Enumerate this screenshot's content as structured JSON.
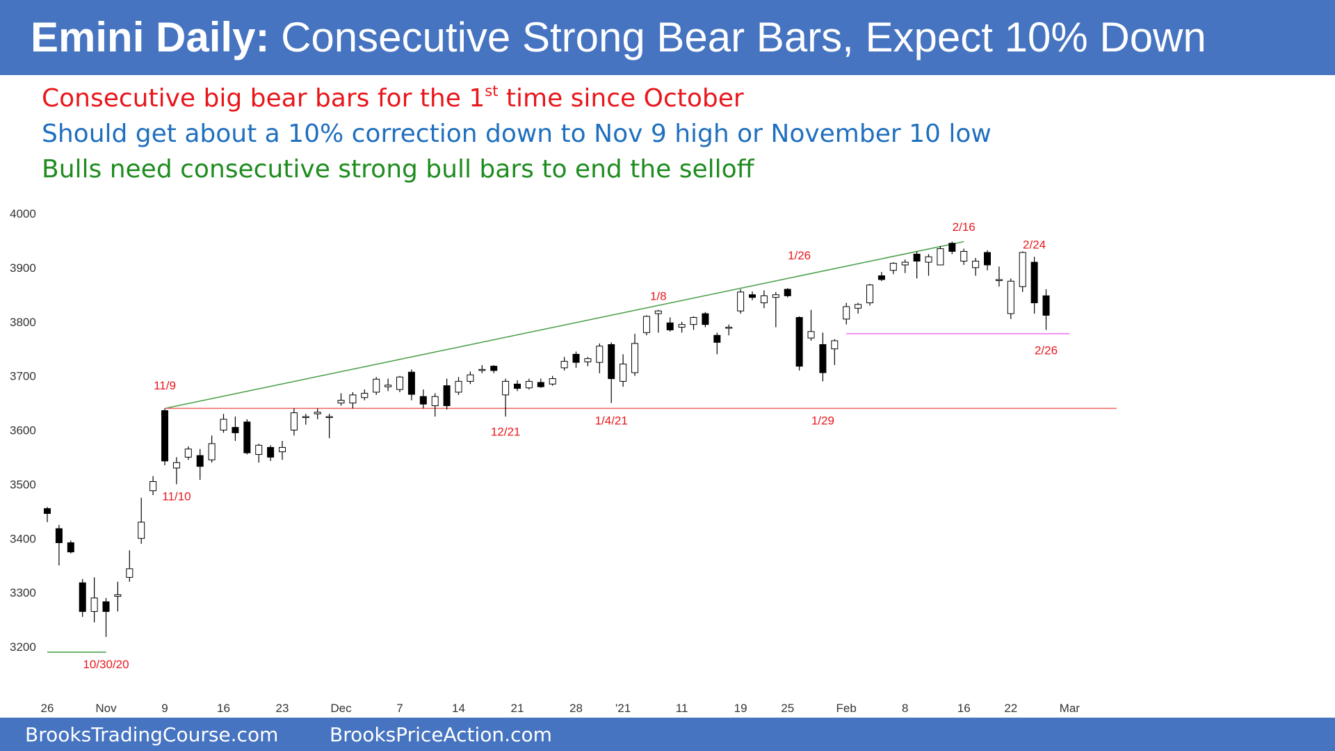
{
  "header": {
    "title_bold": "Emini Daily:",
    "title_rest": " Consecutive Strong Bear Bars, Expect 10% Down",
    "color": "#4674c1"
  },
  "notes": [
    {
      "pre": "Consecutive big bear bars for the 1",
      "sup": "st",
      "post": " time since October",
      "color": "#e8161b"
    },
    {
      "pre": "Should get about a 10% correction down to Nov 9 high or November 10 low",
      "sup": "",
      "post": "",
      "color": "#1f6fbf"
    },
    {
      "pre": "Bulls need consecutive strong bull bars to end the selloff",
      "sup": "",
      "post": "",
      "color": "#1e8c1e"
    }
  ],
  "footer": {
    "left_link": "BrooksTradingCourse.com",
    "right_link": "BrooksPriceAction.com"
  },
  "chart_data": {
    "type": "candlestick",
    "ylim": [
      3150,
      4020
    ],
    "y_ticks": [
      3200,
      3300,
      3400,
      3500,
      3600,
      3700,
      3800,
      3900,
      4000
    ],
    "x_ticks": [
      {
        "bar": 0,
        "label": "26"
      },
      {
        "bar": 5,
        "label": "Nov"
      },
      {
        "bar": 10,
        "label": "9"
      },
      {
        "bar": 15,
        "label": "16"
      },
      {
        "bar": 20,
        "label": "23"
      },
      {
        "bar": 25,
        "label": "Dec"
      },
      {
        "bar": 30,
        "label": "7"
      },
      {
        "bar": 35,
        "label": "14"
      },
      {
        "bar": 40,
        "label": "21"
      },
      {
        "bar": 45,
        "label": "28"
      },
      {
        "bar": 49,
        "label": "'21"
      },
      {
        "bar": 54,
        "label": "11"
      },
      {
        "bar": 59,
        "label": "19"
      },
      {
        "bar": 63,
        "label": "25"
      },
      {
        "bar": 68,
        "label": "Feb"
      },
      {
        "bar": 73,
        "label": "8"
      },
      {
        "bar": 78,
        "label": "16"
      },
      {
        "bar": 82,
        "label": "22"
      },
      {
        "bar": 87,
        "label": "Mar"
      }
    ],
    "bars": [
      {
        "date": "10/26",
        "o": 3455,
        "h": 3458,
        "l": 3430,
        "c": 3446
      },
      {
        "date": "10/27",
        "o": 3418,
        "h": 3425,
        "l": 3350,
        "c": 3392
      },
      {
        "date": "10/28",
        "o": 3392,
        "h": 3396,
        "l": 3372,
        "c": 3375
      },
      {
        "date": "10/29",
        "o": 3318,
        "h": 3325,
        "l": 3255,
        "c": 3265
      },
      {
        "date": "10/30",
        "o": 3265,
        "h": 3328,
        "l": 3245,
        "c": 3290
      },
      {
        "date": "11/2",
        "o": 3283,
        "h": 3290,
        "l": 3218,
        "c": 3265
      },
      {
        "date": "11/3",
        "o": 3293,
        "h": 3320,
        "l": 3265,
        "c": 3296
      },
      {
        "date": "11/4",
        "o": 3328,
        "h": 3378,
        "l": 3320,
        "c": 3344
      },
      {
        "date": "11/5",
        "o": 3400,
        "h": 3475,
        "l": 3390,
        "c": 3430
      },
      {
        "date": "11/6",
        "o": 3488,
        "h": 3515,
        "l": 3480,
        "c": 3505
      },
      {
        "date": "11/9",
        "o": 3636,
        "h": 3640,
        "l": 3535,
        "c": 3543
      },
      {
        "date": "11/10",
        "o": 3530,
        "h": 3550,
        "l": 3500,
        "c": 3540
      },
      {
        "date": "11/11",
        "o": 3550,
        "h": 3570,
        "l": 3545,
        "c": 3565
      },
      {
        "date": "11/12",
        "o": 3553,
        "h": 3565,
        "l": 3508,
        "c": 3533
      },
      {
        "date": "11/13",
        "o": 3545,
        "h": 3590,
        "l": 3540,
        "c": 3575
      },
      {
        "date": "11/16",
        "o": 3600,
        "h": 3630,
        "l": 3595,
        "c": 3620
      },
      {
        "date": "11/17",
        "o": 3605,
        "h": 3625,
        "l": 3580,
        "c": 3595
      },
      {
        "date": "11/18",
        "o": 3615,
        "h": 3620,
        "l": 3555,
        "c": 3558
      },
      {
        "date": "11/19",
        "o": 3555,
        "h": 3575,
        "l": 3540,
        "c": 3572
      },
      {
        "date": "11/20",
        "o": 3568,
        "h": 3572,
        "l": 3543,
        "c": 3550
      },
      {
        "date": "11/23",
        "o": 3560,
        "h": 3580,
        "l": 3545,
        "c": 3568
      },
      {
        "date": "11/24",
        "o": 3600,
        "h": 3640,
        "l": 3590,
        "c": 3632
      },
      {
        "date": "11/25",
        "o": 3625,
        "h": 3630,
        "l": 3610,
        "c": 3625
      },
      {
        "date": "11/27",
        "o": 3630,
        "h": 3640,
        "l": 3620,
        "c": 3633
      },
      {
        "date": "11/30",
        "o": 3625,
        "h": 3630,
        "l": 3585,
        "c": 3625
      },
      {
        "date": "12/1",
        "o": 3650,
        "h": 3668,
        "l": 3645,
        "c": 3655
      },
      {
        "date": "12/2",
        "o": 3650,
        "h": 3670,
        "l": 3640,
        "c": 3665
      },
      {
        "date": "12/3",
        "o": 3660,
        "h": 3675,
        "l": 3655,
        "c": 3668
      },
      {
        "date": "12/4",
        "o": 3670,
        "h": 3698,
        "l": 3665,
        "c": 3694
      },
      {
        "date": "12/7",
        "o": 3680,
        "h": 3695,
        "l": 3672,
        "c": 3683
      },
      {
        "date": "12/8",
        "o": 3675,
        "h": 3700,
        "l": 3670,
        "c": 3698
      },
      {
        "date": "12/9",
        "o": 3707,
        "h": 3712,
        "l": 3655,
        "c": 3666
      },
      {
        "date": "12/10",
        "o": 3662,
        "h": 3675,
        "l": 3640,
        "c": 3648
      },
      {
        "date": "12/11",
        "o": 3645,
        "h": 3668,
        "l": 3625,
        "c": 3662
      },
      {
        "date": "12/14",
        "o": 3682,
        "h": 3695,
        "l": 3638,
        "c": 3645
      },
      {
        "date": "12/15",
        "o": 3670,
        "h": 3698,
        "l": 3665,
        "c": 3690
      },
      {
        "date": "12/16",
        "o": 3690,
        "h": 3708,
        "l": 3685,
        "c": 3702
      },
      {
        "date": "12/17",
        "o": 3712,
        "h": 3720,
        "l": 3705,
        "c": 3712
      },
      {
        "date": "12/18",
        "o": 3718,
        "h": 3720,
        "l": 3705,
        "c": 3710
      },
      {
        "date": "12/21",
        "o": 3665,
        "h": 3695,
        "l": 3625,
        "c": 3690
      },
      {
        "date": "12/22",
        "o": 3685,
        "h": 3692,
        "l": 3672,
        "c": 3677
      },
      {
        "date": "12/23",
        "o": 3678,
        "h": 3695,
        "l": 3675,
        "c": 3690
      },
      {
        "date": "12/24",
        "o": 3688,
        "h": 3695,
        "l": 3678,
        "c": 3680
      },
      {
        "date": "12/28",
        "o": 3685,
        "h": 3700,
        "l": 3682,
        "c": 3695
      },
      {
        "date": "12/29",
        "o": 3715,
        "h": 3735,
        "l": 3710,
        "c": 3727
      },
      {
        "date": "12/30",
        "o": 3740,
        "h": 3745,
        "l": 3715,
        "c": 3725
      },
      {
        "date": "12/31",
        "o": 3726,
        "h": 3735,
        "l": 3718,
        "c": 3732
      },
      {
        "date": "1/4",
        "o": 3725,
        "h": 3760,
        "l": 3705,
        "c": 3755
      },
      {
        "date": "1/5",
        "o": 3758,
        "h": 3762,
        "l": 3650,
        "c": 3695
      },
      {
        "date": "1/6",
        "o": 3690,
        "h": 3740,
        "l": 3680,
        "c": 3722
      },
      {
        "date": "1/7",
        "o": 3706,
        "h": 3778,
        "l": 3700,
        "c": 3760
      },
      {
        "date": "1/8",
        "o": 3780,
        "h": 3812,
        "l": 3775,
        "c": 3810
      },
      {
        "date": "1/11",
        "o": 3815,
        "h": 3822,
        "l": 3780,
        "c": 3820
      },
      {
        "date": "1/12",
        "o": 3798,
        "h": 3808,
        "l": 3782,
        "c": 3785
      },
      {
        "date": "1/13",
        "o": 3790,
        "h": 3800,
        "l": 3780,
        "c": 3795
      },
      {
        "date": "1/14",
        "o": 3795,
        "h": 3810,
        "l": 3785,
        "c": 3808
      },
      {
        "date": "1/15",
        "o": 3815,
        "h": 3818,
        "l": 3790,
        "c": 3795
      },
      {
        "date": "1/19",
        "o": 3775,
        "h": 3780,
        "l": 3740,
        "c": 3762
      },
      {
        "date": "1/20",
        "o": 3788,
        "h": 3795,
        "l": 3775,
        "c": 3790
      },
      {
        "date": "1/21",
        "o": 3820,
        "h": 3860,
        "l": 3815,
        "c": 3855
      },
      {
        "date": "1/22",
        "o": 3850,
        "h": 3856,
        "l": 3840,
        "c": 3845
      },
      {
        "date": "1/25",
        "o": 3835,
        "h": 3858,
        "l": 3825,
        "c": 3848
      },
      {
        "date": "1/26",
        "o": 3845,
        "h": 3855,
        "l": 3790,
        "c": 3850
      },
      {
        "date": "1/27",
        "o": 3860,
        "h": 3862,
        "l": 3845,
        "c": 3848
      },
      {
        "date": "1/28",
        "o": 3808,
        "h": 3810,
        "l": 3710,
        "c": 3718
      },
      {
        "date": "1/29",
        "o": 3770,
        "h": 3822,
        "l": 3765,
        "c": 3782
      },
      {
        "date": "2/1",
        "o": 3758,
        "h": 3780,
        "l": 3690,
        "c": 3706
      },
      {
        "date": "2/2",
        "o": 3750,
        "h": 3768,
        "l": 3720,
        "c": 3765
      },
      {
        "date": "2/3",
        "o": 3805,
        "h": 3835,
        "l": 3795,
        "c": 3828
      },
      {
        "date": "2/4",
        "o": 3825,
        "h": 3835,
        "l": 3815,
        "c": 3832
      },
      {
        "date": "2/5",
        "o": 3835,
        "h": 3870,
        "l": 3830,
        "c": 3868
      },
      {
        "date": "2/8",
        "o": 3885,
        "h": 3892,
        "l": 3875,
        "c": 3878
      },
      {
        "date": "2/9",
        "o": 3895,
        "h": 3910,
        "l": 3888,
        "c": 3908
      },
      {
        "date": "2/10",
        "o": 3905,
        "h": 3915,
        "l": 3890,
        "c": 3910
      },
      {
        "date": "2/11",
        "o": 3925,
        "h": 3930,
        "l": 3880,
        "c": 3912
      },
      {
        "date": "2/12",
        "o": 3910,
        "h": 3925,
        "l": 3885,
        "c": 3920
      },
      {
        "date": "2/16",
        "o": 3905,
        "h": 3940,
        "l": 3905,
        "c": 3935
      },
      {
        "date": "2/17",
        "o": 3945,
        "h": 3948,
        "l": 3925,
        "c": 3930
      },
      {
        "date": "2/18",
        "o": 3912,
        "h": 3935,
        "l": 3905,
        "c": 3930
      },
      {
        "date": "2/19",
        "o": 3900,
        "h": 3918,
        "l": 3885,
        "c": 3912
      },
      {
        "date": "2/22",
        "o": 3928,
        "h": 3932,
        "l": 3895,
        "c": 3905
      },
      {
        "date": "2/23",
        "o": 3876,
        "h": 3902,
        "l": 3865,
        "c": 3878
      },
      {
        "date": "2/24",
        "o": 3815,
        "h": 3880,
        "l": 3805,
        "c": 3875
      },
      {
        "date": "2/25",
        "o": 3865,
        "h": 3930,
        "l": 3855,
        "c": 3928
      },
      {
        "date": "2/26",
        "o": 3910,
        "h": 3920,
        "l": 3815,
        "c": 3835
      },
      {
        "date": "2/27",
        "o": 3848,
        "h": 3860,
        "l": 3785,
        "c": 3812
      }
    ],
    "lines": [
      {
        "name": "bull-trend-line",
        "color": "#4ea24e",
        "from": {
          "bar": 10,
          "value": 3640
        },
        "to": {
          "bar": 78,
          "value": 3948
        }
      },
      {
        "name": "nov9-high-line",
        "color": "#f06b6b",
        "from": {
          "bar": 10,
          "value": 3640
        },
        "to": {
          "bar": 91,
          "value": 3640
        }
      },
      {
        "name": "jan29-gap-line",
        "color": "#f06df0",
        "from": {
          "bar": 68,
          "value": 3778
        },
        "to": {
          "bar": 87,
          "value": 3778
        }
      },
      {
        "name": "oct30-low-line",
        "color": "#4ea24e",
        "from": {
          "bar": 0,
          "value": 3190
        },
        "to": {
          "bar": 5,
          "value": 3190
        }
      }
    ],
    "annotations": [
      {
        "text": "11/9",
        "bar": 10,
        "value": 3675,
        "color": "#e8161b"
      },
      {
        "text": "11/10",
        "bar": 11,
        "value": 3470,
        "color": "#e8161b"
      },
      {
        "text": "10/30/20",
        "bar": 5,
        "value": 3160,
        "color": "#e8161b"
      },
      {
        "text": "12/21",
        "bar": 39,
        "value": 3590,
        "color": "#e8161b"
      },
      {
        "text": "1/4/21",
        "bar": 48,
        "value": 3610,
        "color": "#e8161b"
      },
      {
        "text": "1/8",
        "bar": 52,
        "value": 3840,
        "color": "#e8161b"
      },
      {
        "text": "1/26",
        "bar": 64,
        "value": 3915,
        "color": "#e8161b"
      },
      {
        "text": "1/29",
        "bar": 66,
        "value": 3610,
        "color": "#e8161b"
      },
      {
        "text": "2/16",
        "bar": 78,
        "value": 3968,
        "color": "#e8161b"
      },
      {
        "text": "2/24",
        "bar": 84,
        "value": 3935,
        "color": "#e8161b"
      },
      {
        "text": "2/26",
        "bar": 85,
        "value": 3740,
        "color": "#e8161b"
      }
    ]
  }
}
